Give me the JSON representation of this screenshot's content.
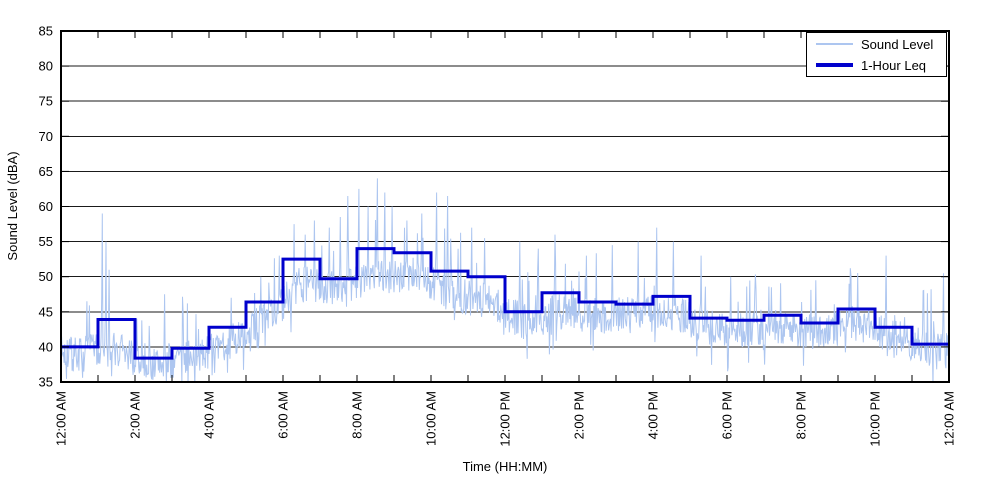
{
  "chart_data": {
    "type": "line",
    "title": "",
    "xlabel": "Time (HH:MM)",
    "ylabel": "Sound Level (dBA)",
    "x_hours": 24,
    "ylim": [
      35,
      85
    ],
    "ytick_step": 5,
    "ytick_labels": [
      "35",
      "40",
      "45",
      "50",
      "55",
      "60",
      "65",
      "70",
      "75",
      "80",
      "85"
    ],
    "xtick_labels": [
      "12:00 AM",
      "2:00 AM",
      "4:00 AM",
      "6:00 AM",
      "8:00 AM",
      "10:00 AM",
      "12:00 PM",
      "2:00 PM",
      "4:00 PM",
      "6:00 PM",
      "8:00 PM",
      "10:00 PM",
      "12:00 AM"
    ],
    "xtick_interval_hours": 2,
    "minor_tick_interval_hours": 1,
    "grid": "horizontal",
    "style": {
      "background": "#ffffff",
      "grid_color": "#1a1a1a",
      "axis_color": "#000000",
      "text_color": "#000000"
    },
    "legend": {
      "position": "top-right",
      "entries": [
        {
          "label": "Sound Level",
          "color": "#adc6f0",
          "sample_height": 2
        },
        {
          "label": "1-Hour Leq",
          "color": "#0000cc",
          "sample_height": 4
        }
      ]
    },
    "series": [
      {
        "name": "1-Hour Leq",
        "render": "step-hourly",
        "color": "#0000cc",
        "stroke_width": 3,
        "values": [
          40.0,
          43.9,
          38.4,
          39.8,
          42.8,
          46.4,
          52.5,
          49.7,
          54.0,
          53.4,
          50.8,
          50.0,
          45.0,
          47.7,
          46.4,
          46.1,
          47.2,
          44.1,
          43.8,
          44.5,
          43.4,
          45.4,
          42.8,
          40.4
        ]
      },
      {
        "name": "Sound Level",
        "render": "noisy-line",
        "color": "#adc6f0",
        "stroke_width": 1,
        "points_per_hour": 60,
        "seed": 7,
        "hourly_median": [
          39,
          39.5,
          37.5,
          38.5,
          40.5,
          44,
          49,
          48,
          50,
          50.5,
          47.5,
          46.5,
          43.5,
          45,
          44.5,
          44.5,
          45,
          43,
          42.5,
          43,
          42,
          43.5,
          41.5,
          39.5
        ],
        "jitter_db": 2.6,
        "burst_probability": 0.05,
        "burst_extra_db": [
          3,
          8
        ],
        "dip_probability": 0.07,
        "dip_extra_db": [
          2,
          4
        ],
        "clip_min": 35,
        "spikes": [
          [
            0.7,
            46.5
          ],
          [
            1.12,
            59
          ],
          [
            1.22,
            55
          ],
          [
            1.3,
            51
          ],
          [
            2.05,
            44
          ],
          [
            2.8,
            47.5
          ],
          [
            3.3,
            45
          ],
          [
            4.6,
            47
          ],
          [
            5.4,
            50
          ],
          [
            5.9,
            53
          ],
          [
            6.3,
            57.5
          ],
          [
            6.6,
            56
          ],
          [
            6.85,
            58
          ],
          [
            7.25,
            57
          ],
          [
            7.55,
            58.5
          ],
          [
            7.75,
            61.5
          ],
          [
            8.05,
            62.5
          ],
          [
            8.3,
            60
          ],
          [
            8.55,
            64
          ],
          [
            8.75,
            62
          ],
          [
            8.95,
            60
          ],
          [
            9.35,
            58
          ],
          [
            9.75,
            59
          ],
          [
            10.15,
            62
          ],
          [
            10.45,
            61.5
          ],
          [
            11.1,
            57
          ],
          [
            11.45,
            55.5
          ],
          [
            12.4,
            55
          ],
          [
            12.9,
            54
          ],
          [
            13.35,
            56
          ],
          [
            14.2,
            53
          ],
          [
            14.9,
            54.5
          ],
          [
            15.6,
            55
          ],
          [
            16.1,
            57
          ],
          [
            16.55,
            55
          ],
          [
            17.3,
            53
          ],
          [
            18.1,
            50
          ],
          [
            19.2,
            48.5
          ],
          [
            20.4,
            49.5
          ],
          [
            21.3,
            49
          ],
          [
            22.3,
            53
          ],
          [
            23.3,
            48
          ],
          [
            23.85,
            50.5
          ]
        ]
      }
    ]
  }
}
